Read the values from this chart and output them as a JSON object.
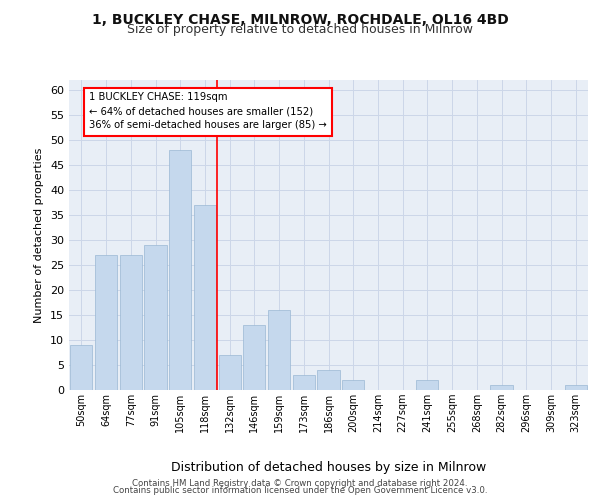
{
  "title1": "1, BUCKLEY CHASE, MILNROW, ROCHDALE, OL16 4BD",
  "title2": "Size of property relative to detached houses in Milnrow",
  "xlabel": "Distribution of detached houses by size in Milnrow",
  "ylabel": "Number of detached properties",
  "categories": [
    "50sqm",
    "64sqm",
    "77sqm",
    "91sqm",
    "105sqm",
    "118sqm",
    "132sqm",
    "146sqm",
    "159sqm",
    "173sqm",
    "186sqm",
    "200sqm",
    "214sqm",
    "227sqm",
    "241sqm",
    "255sqm",
    "268sqm",
    "282sqm",
    "296sqm",
    "309sqm",
    "323sqm"
  ],
  "values": [
    9,
    27,
    27,
    29,
    48,
    37,
    7,
    13,
    16,
    3,
    4,
    2,
    0,
    0,
    2,
    0,
    0,
    1,
    0,
    0,
    1
  ],
  "bar_color": "#c5d8ed",
  "bar_edge_color": "#9ab8d4",
  "grid_color": "#ccd6e8",
  "background_color": "#e8eef6",
  "red_line_bin_index": 5,
  "annotation_text_line1": "1 BUCKLEY CHASE: 119sqm",
  "annotation_text_line2": "← 64% of detached houses are smaller (152)",
  "annotation_text_line3": "36% of semi-detached houses are larger (85) →",
  "footer1": "Contains HM Land Registry data © Crown copyright and database right 2024.",
  "footer2": "Contains public sector information licensed under the Open Government Licence v3.0.",
  "ylim": [
    0,
    62
  ],
  "yticks": [
    0,
    5,
    10,
    15,
    20,
    25,
    30,
    35,
    40,
    45,
    50,
    55,
    60
  ]
}
